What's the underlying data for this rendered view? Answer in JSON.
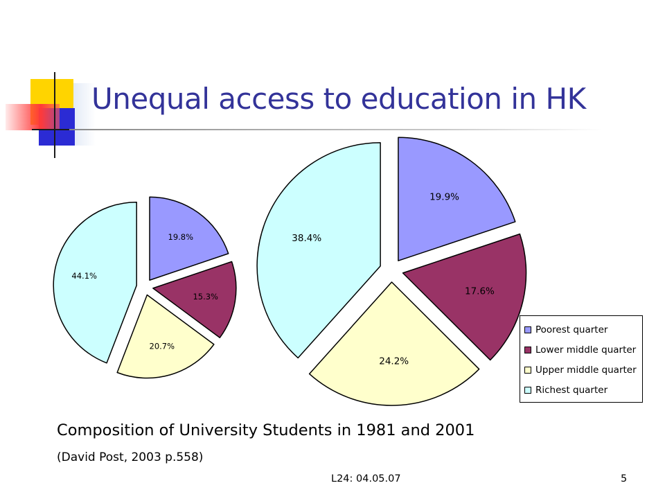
{
  "slide": {
    "title": "Unequal access to education in HK",
    "caption": "Composition of University Students in 1981 and 2001",
    "citation": "(David Post, 2003 p.558)",
    "footer": "L24: 04.05.07",
    "page_number": "5"
  },
  "chart_data": [
    {
      "type": "pie",
      "categories": [
        "Poorest quarter",
        "Lower middle quarter",
        "Upper middle quarter",
        "Richest quarter"
      ],
      "values": [
        19.8,
        15.3,
        20.7,
        44.1
      ],
      "data_labels": [
        "19.8%",
        "15.3%",
        "20.7%",
        "44.1%"
      ],
      "colors": [
        "#9999ff",
        "#993366",
        "#ffffcc",
        "#ccffff"
      ],
      "exploded": true
    },
    {
      "type": "pie",
      "categories": [
        "Poorest quarter",
        "Lower middle quarter",
        "Upper middle quarter",
        "Richest quarter"
      ],
      "values": [
        19.9,
        17.6,
        24.2,
        38.4
      ],
      "data_labels": [
        "19.9%",
        "17.6%",
        "24.2%",
        "38.4%"
      ],
      "colors": [
        "#9999ff",
        "#993366",
        "#ffffcc",
        "#ccffff"
      ],
      "exploded": true,
      "legend": {
        "position": "right",
        "entries": [
          "Poorest quarter",
          "Lower middle quarter",
          "Upper middle quarter",
          "Richest quarter"
        ]
      }
    }
  ]
}
